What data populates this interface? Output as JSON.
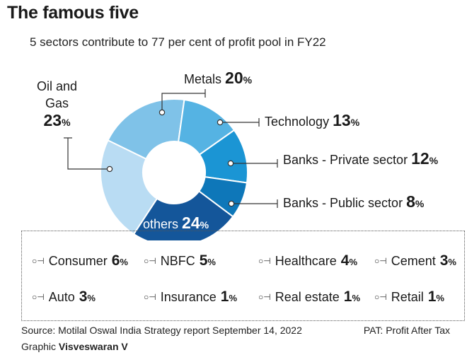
{
  "title": "The famous five",
  "subtitle": "5 sectors contribute to 77 per cent of profit pool in FY22",
  "chart_data": {
    "type": "pie",
    "categories": [
      "Metals",
      "Technology",
      "Banks - Private sector",
      "Banks - Public sector",
      "others",
      "Oil and Gas"
    ],
    "values": [
      20,
      13,
      12,
      8,
      24,
      23
    ],
    "colors": [
      "#7fc2e8",
      "#55b3e3",
      "#1b95d4",
      "#0e77b9",
      "#14569a",
      "#b9dcf3"
    ],
    "labels": {
      "metals": {
        "name": "Metals",
        "value": "20",
        "unit": "%"
      },
      "tech": {
        "name": "Technology",
        "value": "13",
        "unit": "%"
      },
      "bpriv": {
        "name": "Banks - Private sector",
        "value": "12",
        "unit": "%"
      },
      "bpub": {
        "name": "Banks - Public sector",
        "value": "8",
        "unit": "%"
      },
      "others": {
        "name": "others",
        "value": "24",
        "unit": "%"
      },
      "oil_line1": "Oil and",
      "oil_line2": "Gas",
      "oil": {
        "value": "23",
        "unit": "%"
      }
    },
    "others_breakdown": [
      {
        "name": "Consumer",
        "value": "6",
        "unit": "%"
      },
      {
        "name": "NBFC",
        "value": "5",
        "unit": "%"
      },
      {
        "name": "Healthcare",
        "value": "4",
        "unit": "%"
      },
      {
        "name": "Cement",
        "value": "3",
        "unit": "%"
      },
      {
        "name": "Auto",
        "value": "3",
        "unit": "%"
      },
      {
        "name": "Insurance",
        "value": "1",
        "unit": "%"
      },
      {
        "name": "Real estate",
        "value": "1",
        "unit": "%"
      },
      {
        "name": "Retail",
        "value": "1",
        "unit": "%"
      }
    ],
    "key_glyph": "○⊣"
  },
  "footer": {
    "source": "Source: Motilal Oswal India Strategy report September 14, 2022",
    "pat": "PAT: Profit After Tax",
    "credit_prefix": "Graphic",
    "credit_name": "Visveswaran V"
  }
}
